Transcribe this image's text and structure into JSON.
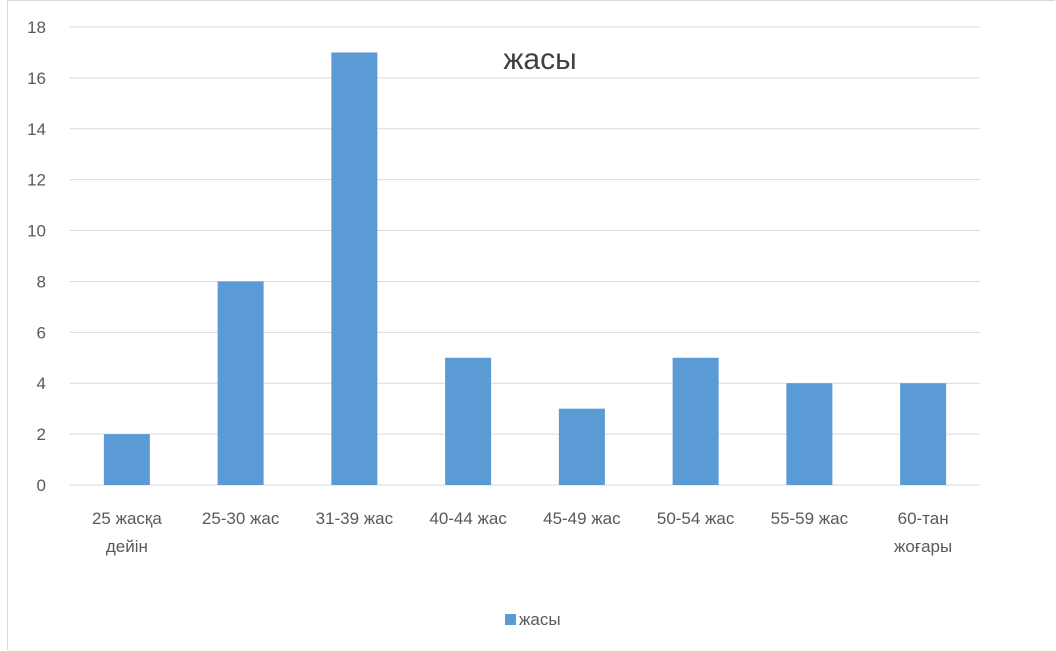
{
  "chart_data": {
    "type": "bar",
    "title": "жасы",
    "categories": [
      [
        "25 жасқа",
        "дейін"
      ],
      [
        "25-30 жас"
      ],
      [
        "31-39 жас"
      ],
      [
        "40-44 жас"
      ],
      [
        "45-49 жас"
      ],
      [
        "50-54 жас"
      ],
      [
        "55-59 жас"
      ],
      [
        "60-тан",
        "жоғары"
      ]
    ],
    "series": [
      {
        "name": "жасы",
        "values": [
          2,
          8,
          17,
          5,
          3,
          5,
          4,
          4
        ],
        "color": "#5b9bd5"
      }
    ],
    "ylim": [
      0,
      18
    ],
    "yticks": [
      0,
      2,
      4,
      6,
      8,
      10,
      12,
      14,
      16,
      18
    ],
    "grid": true,
    "gridColor": "#d9d9d9",
    "legend": "bottom"
  }
}
